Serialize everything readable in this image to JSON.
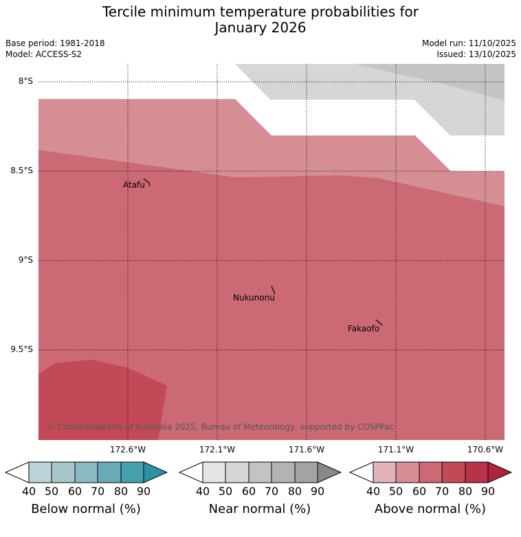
{
  "header": {
    "title_line1": "Tercile minimum temperature probabilities for",
    "title_line2": "January 2026",
    "base_period": "Base period: 1981-2018",
    "model": "Model: ACCESS-S2",
    "model_run": "Model run: 11/10/2025",
    "issued": "Issued: 13/10/2025"
  },
  "map": {
    "lat_labels": [
      "8°S",
      "8.5°S",
      "9°S",
      "9.5°S"
    ],
    "lon_labels": [
      "172.6°W",
      "172.1°W",
      "171.6°W",
      "171.1°W",
      "170.6°W"
    ],
    "places": [
      "Atafu",
      "Nukunonu",
      "Fakaofo"
    ],
    "copyright": "© Commonwealth of Australia 2025, Bureau of Meteorology, supported by COSPPac",
    "colors": {
      "above_50": "#d68e95",
      "above_60": "#cb6a75",
      "above_70": "#c24a57",
      "near_60": "#d6d6d6",
      "near_70": "#c4c4c4"
    }
  },
  "legends": [
    {
      "label": "Below normal (%)",
      "ticks": [
        "40",
        "50",
        "60",
        "70",
        "80",
        "90"
      ],
      "colors": [
        "#ffffff",
        "#bdd3d9",
        "#a6c6cc",
        "#89b9c3",
        "#6aa9b6",
        "#46a0b0",
        "#2a93a5"
      ]
    },
    {
      "label": "Near normal (%)",
      "ticks": [
        "40",
        "50",
        "60",
        "70",
        "80",
        "90"
      ],
      "colors": [
        "#ffffff",
        "#e6e6e6",
        "#d6d6d6",
        "#c4c4c4",
        "#b3b3b3",
        "#a3a3a3",
        "#888888"
      ]
    },
    {
      "label": "Above normal (%)",
      "ticks": [
        "40",
        "50",
        "60",
        "70",
        "80",
        "90"
      ],
      "colors": [
        "#ffffff",
        "#e2b4b9",
        "#d68e95",
        "#cb6a75",
        "#c24a57",
        "#b8334a",
        "#b0223e"
      ]
    }
  ]
}
